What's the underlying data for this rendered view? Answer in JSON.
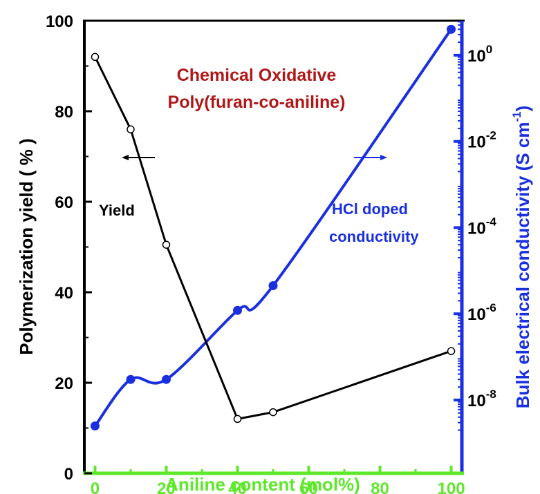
{
  "colors": {
    "left_axis": "#000000",
    "right_axis": "#1a2fe0",
    "bottom_axis": "#5de82a",
    "title": "#b01818",
    "yield_series": "#000000",
    "conductivity_series": "#1a2fe0"
  },
  "chart_data": {
    "type": "line",
    "title_lines": [
      "Chemical Oxidative",
      "Poly(furan-co-aniline)"
    ],
    "xlabel": "Aniline content  (mol%)",
    "ylabel_left": "Polymerization yield ( % )",
    "ylabel_right_prefix": "Bulk electrical conductivity (S cm",
    "ylabel_right_sup": "-1",
    "ylabel_right_suffix": ")",
    "xlim": [
      -3,
      103
    ],
    "ylim_left": [
      0,
      100
    ],
    "ylim_right_log10": [
      -9.7,
      0.8
    ],
    "x_ticks": [
      "0",
      "20",
      "40",
      "60",
      "80",
      "100"
    ],
    "y_left_ticks": [
      "0",
      "20",
      "40",
      "60",
      "80",
      "100"
    ],
    "y_right_ticks": [
      {
        "base": "10",
        "exp": "-8"
      },
      {
        "base": "10",
        "exp": "-6"
      },
      {
        "base": "10",
        "exp": "-4"
      },
      {
        "base": "10",
        "exp": "-2"
      },
      {
        "base": "10",
        "exp": "0"
      }
    ],
    "series": [
      {
        "name": "Yield",
        "axis": "left",
        "x": [
          0,
          10,
          20,
          40,
          50,
          100
        ],
        "y": [
          92,
          76,
          50.5,
          12,
          13.5,
          27
        ]
      },
      {
        "name": "HCl doped conductivity",
        "axis": "right",
        "x": [
          0,
          10,
          20,
          40,
          50,
          100
        ],
        "y": [
          2.5e-09,
          3e-08,
          3e-08,
          1.2e-06,
          4.5e-06,
          4
        ]
      }
    ],
    "annotations": {
      "yield_label": "Yield",
      "conductivity_label_lines": [
        "HCl doped",
        "conductivity"
      ]
    }
  }
}
